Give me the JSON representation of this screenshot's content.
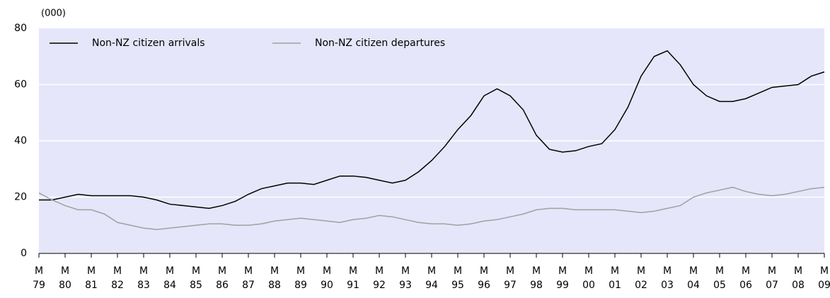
{
  "chart_data": {
    "type": "line",
    "y_unit_label": "(000)",
    "x": [
      1979,
      1979.5,
      1980,
      1980.5,
      1981,
      1981.5,
      1982,
      1982.5,
      1983,
      1983.5,
      1984,
      1984.5,
      1985,
      1985.5,
      1986,
      1986.5,
      1987,
      1987.5,
      1988,
      1988.5,
      1989,
      1989.5,
      1990,
      1990.5,
      1991,
      1991.5,
      1992,
      1992.5,
      1993,
      1993.5,
      1994,
      1994.5,
      1995,
      1995.5,
      1996,
      1996.5,
      1997,
      1997.5,
      1998,
      1998.5,
      1999,
      1999.5,
      2000,
      2000.5,
      2001,
      2001.5,
      2002,
      2002.5,
      2003,
      2003.5,
      2004,
      2004.5,
      2005,
      2005.5,
      2006,
      2006.5,
      2007,
      2007.5,
      2008,
      2008.5,
      2009
    ],
    "series": [
      {
        "name": "Non-NZ citizen arrivals",
        "color": "#000000",
        "values": [
          19,
          19,
          20,
          21,
          20.5,
          20.5,
          20.5,
          20.5,
          20,
          19,
          17.5,
          17,
          16.5,
          16,
          17,
          18.5,
          21,
          23,
          24,
          25,
          25,
          24.5,
          26,
          27.5,
          27.5,
          27,
          26,
          25,
          26,
          29,
          33,
          38,
          44,
          49,
          56,
          58.5,
          56,
          51,
          42,
          37,
          36,
          36.5,
          38,
          39,
          44,
          52,
          63,
          70,
          72,
          67,
          60,
          56,
          54,
          54,
          55,
          57,
          59,
          59.5,
          60,
          63,
          64.5
        ]
      },
      {
        "name": "Non-NZ citizen departures",
        "color": "#a0a0a0",
        "values": [
          21.5,
          19,
          17,
          15.5,
          15.5,
          14,
          11,
          10,
          9,
          8.5,
          9,
          9.5,
          10,
          10.5,
          10.5,
          10,
          10,
          10.5,
          11.5,
          12,
          12.5,
          12,
          11.5,
          11,
          12,
          12.5,
          13.5,
          13,
          12,
          11,
          10.5,
          10.5,
          10,
          10.5,
          11.5,
          12,
          13,
          14,
          15.5,
          16,
          16,
          15.5,
          15.5,
          15.5,
          15.5,
          15,
          14.5,
          15,
          16,
          17,
          20,
          21.5,
          22.5,
          23.5,
          22,
          21,
          20.5,
          21,
          22,
          23,
          23.5
        ]
      }
    ],
    "xlim": [
      1979,
      2009
    ],
    "xtick_prefix": "M",
    "xticks": [
      {
        "value": 1979,
        "label": "79"
      },
      {
        "value": 1980,
        "label": "80"
      },
      {
        "value": 1981,
        "label": "81"
      },
      {
        "value": 1982,
        "label": "82"
      },
      {
        "value": 1983,
        "label": "83"
      },
      {
        "value": 1984,
        "label": "84"
      },
      {
        "value": 1985,
        "label": "85"
      },
      {
        "value": 1986,
        "label": "86"
      },
      {
        "value": 1987,
        "label": "87"
      },
      {
        "value": 1988,
        "label": "88"
      },
      {
        "value": 1989,
        "label": "89"
      },
      {
        "value": 1990,
        "label": "90"
      },
      {
        "value": 1991,
        "label": "91"
      },
      {
        "value": 1992,
        "label": "92"
      },
      {
        "value": 1993,
        "label": "93"
      },
      {
        "value": 1994,
        "label": "94"
      },
      {
        "value": 1995,
        "label": "95"
      },
      {
        "value": 1996,
        "label": "96"
      },
      {
        "value": 1997,
        "label": "97"
      },
      {
        "value": 1998,
        "label": "98"
      },
      {
        "value": 1999,
        "label": "99"
      },
      {
        "value": 2000,
        "label": "00"
      },
      {
        "value": 2001,
        "label": "01"
      },
      {
        "value": 2002,
        "label": "02"
      },
      {
        "value": 2003,
        "label": "03"
      },
      {
        "value": 2004,
        "label": "04"
      },
      {
        "value": 2005,
        "label": "05"
      },
      {
        "value": 2006,
        "label": "06"
      },
      {
        "value": 2007,
        "label": "07"
      },
      {
        "value": 2008,
        "label": "08"
      },
      {
        "value": 2009,
        "label": "09"
      }
    ],
    "ylim": [
      0,
      80
    ],
    "yticks": [
      0,
      20,
      40,
      60,
      80
    ],
    "grid": true,
    "legend": "top-left",
    "background": "#e6e6fa"
  }
}
